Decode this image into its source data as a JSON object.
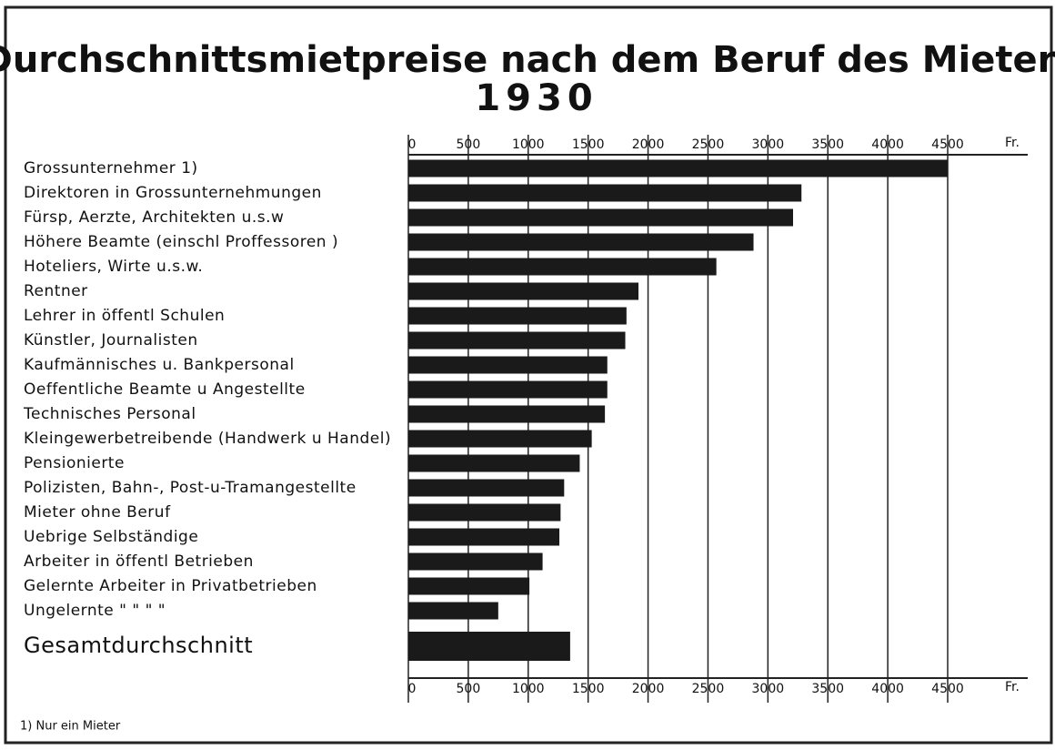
{
  "chart_data": {
    "type": "barh",
    "title": [
      "Durchschnittsmietpreise nach dem Beruf des Mieters,",
      "1930"
    ],
    "categories": [
      "Grossunternehmer 1)",
      "Direktoren in Grossunternehmungen",
      "Fürsp, Aerzte, Architekten u.s.w",
      "Höhere Beamte (einschl Proffessoren )",
      "Hoteliers, Wirte u.s.w.",
      "Rentner",
      "Lehrer in öffentl Schulen",
      "Künstler, Journalisten",
      "Kaufmännisches u. Bankpersonal",
      "Oeffentliche Beamte u Angestellte",
      "Technisches Personal",
      "Kleingewerbetreibende (Handwerk u Handel)",
      "Pensionierte",
      "Polizisten, Bahn-, Post-u-Tramangestellte",
      "Mieter ohne Beruf",
      "Uebrige Selbständige",
      "Arbeiter in öffentl Betrieben",
      "Gelernte Arbeiter in Privatbetrieben",
      "Ungelernte \"  \"  \"  \"",
      "Gesamtdurchschnitt"
    ],
    "values": [
      4500,
      3280,
      3210,
      2880,
      2570,
      1920,
      1820,
      1810,
      1660,
      1660,
      1640,
      1530,
      1430,
      1300,
      1270,
      1260,
      1120,
      1010,
      750,
      1350
    ],
    "color": "#1a1a1a",
    "xlim": [
      0,
      4500
    ],
    "xticks": [
      0,
      500,
      1000,
      1500,
      2000,
      2500,
      3000,
      3500,
      4000,
      4500
    ],
    "x_unit": "Fr.",
    "grid": true,
    "footnote": "1) Nur ein Mieter"
  }
}
